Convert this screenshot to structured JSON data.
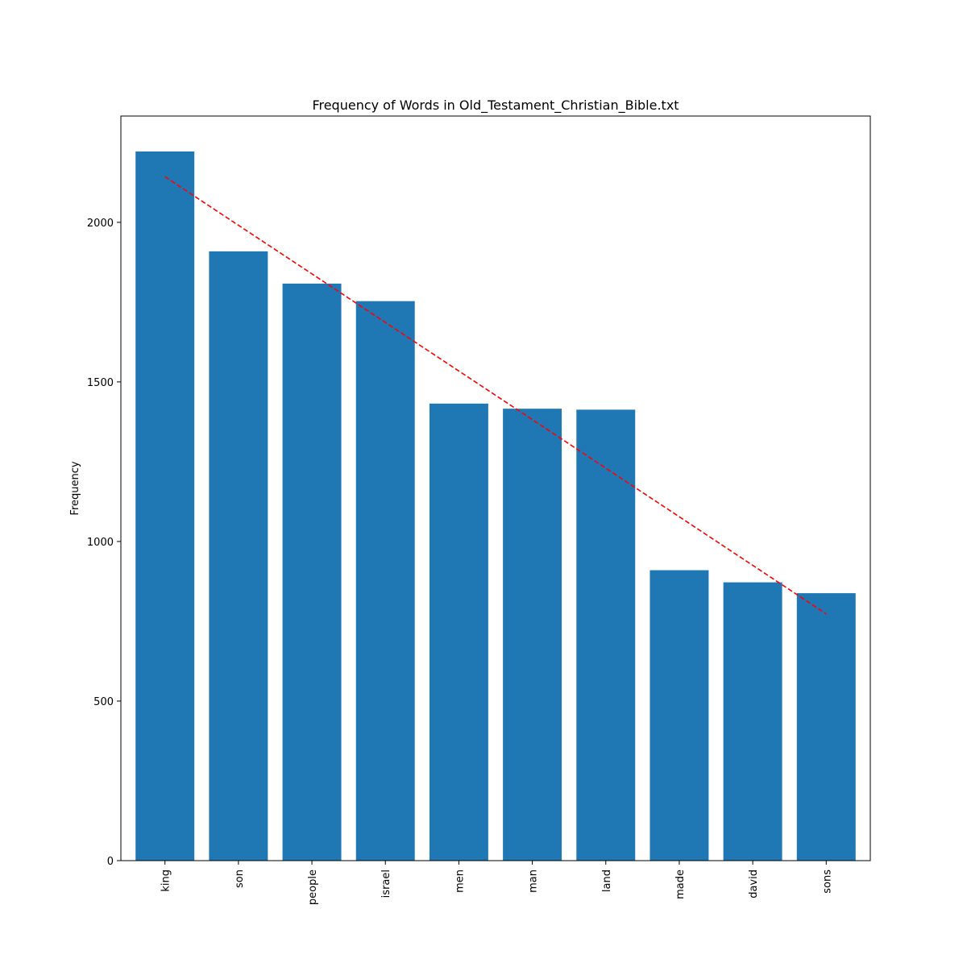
{
  "chart_data": {
    "type": "bar",
    "title": "Frequency of Words in Old_Testament_Christian_Bible.txt",
    "xlabel": "",
    "ylabel": "Frequency",
    "categories": [
      "king",
      "son",
      "people",
      "israel",
      "men",
      "man",
      "land",
      "made",
      "david",
      "sons"
    ],
    "values": [
      2222,
      1909,
      1808,
      1753,
      1432,
      1416,
      1413,
      910,
      872,
      838
    ],
    "ylim": [
      0,
      2333
    ],
    "yticks": [
      0,
      500,
      1000,
      1500,
      2000
    ],
    "grid": false,
    "bar_color": "#1f77b4",
    "trend_line": {
      "style": "dashed",
      "color": "#ff0000",
      "start": {
        "category": "king",
        "value": 2143
      },
      "end": {
        "category": "sons",
        "value": 773
      }
    }
  }
}
